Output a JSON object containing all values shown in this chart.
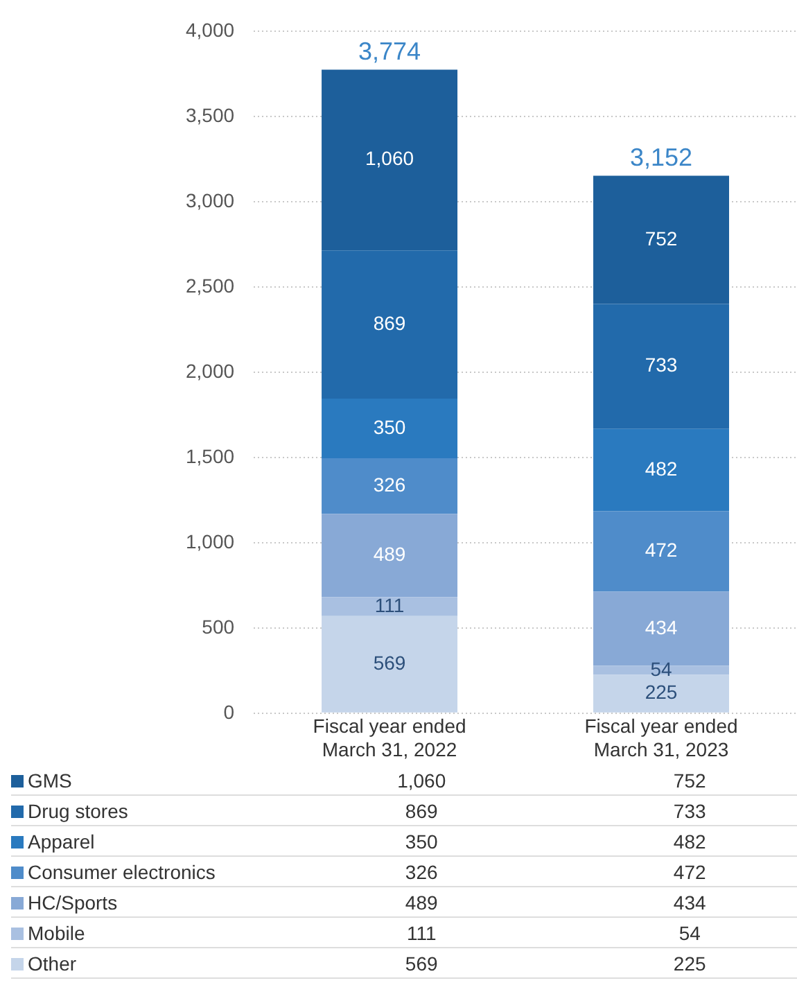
{
  "chart_data": {
    "type": "bar",
    "stacked": true,
    "categories": [
      "Fiscal year ended\nMarch 31, 2022",
      "Fiscal year ended\nMarch 31, 2023"
    ],
    "series": [
      {
        "name": "Other",
        "color": "#c5d5ea",
        "values": [
          569,
          225
        ],
        "value_labels": [
          "569",
          "225"
        ]
      },
      {
        "name": "Mobile",
        "color": "#a9c0e1",
        "values": [
          111,
          54
        ],
        "value_labels": [
          "111",
          "54"
        ]
      },
      {
        "name": "HC/Sports",
        "color": "#88a9d6",
        "values": [
          489,
          434
        ],
        "value_labels": [
          "489",
          "434"
        ]
      },
      {
        "name": "Consumer electronics",
        "color": "#4f8cca",
        "values": [
          326,
          472
        ],
        "value_labels": [
          "326",
          "472"
        ]
      },
      {
        "name": "Apparel",
        "color": "#2a7abf",
        "values": [
          350,
          482
        ],
        "value_labels": [
          "350",
          "482"
        ]
      },
      {
        "name": "Drug stores",
        "color": "#226aab",
        "values": [
          869,
          733
        ],
        "value_labels": [
          "869",
          "733"
        ]
      },
      {
        "name": "GMS",
        "color": "#1d5f9b",
        "values": [
          1060,
          752
        ],
        "value_labels": [
          "1,060",
          "752"
        ]
      }
    ],
    "ylim": [
      0,
      4000
    ],
    "yticks": [
      {
        "value": 0,
        "label": "0"
      },
      {
        "value": 500,
        "label": "500"
      },
      {
        "value": 1000,
        "label": "1,000"
      },
      {
        "value": 1500,
        "label": "1,500"
      },
      {
        "value": 2000,
        "label": "2,000"
      },
      {
        "value": 2500,
        "label": "2,500"
      },
      {
        "value": 3000,
        "label": "3,000"
      },
      {
        "value": 3500,
        "label": "3,500"
      },
      {
        "value": 4000,
        "label": "4,000"
      }
    ],
    "grid": "y",
    "legend": "bottom",
    "totals": [
      "3,774",
      "3,152"
    ]
  }
}
